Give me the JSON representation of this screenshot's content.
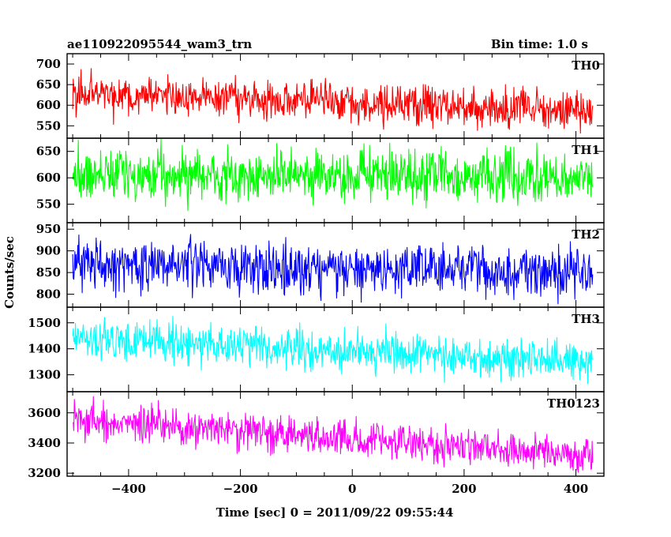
{
  "header": {
    "title": "ae110922095544_wam3_trn",
    "bin_time": "Bin time: 1.0 s"
  },
  "chart_data": {
    "type": "line",
    "ylabel": "Counts/sec",
    "xlabel": "Time [sec] 0 = 2011/09/22 09:55:44",
    "xlim": [
      -510,
      450
    ],
    "x_start": -500,
    "x_end": 430,
    "bin_seconds": 1.0,
    "x_ticks": [
      -400,
      -200,
      0,
      200,
      400
    ],
    "x_tick_labels": [
      "−400",
      "−200",
      "0",
      "200",
      "400"
    ],
    "panels": [
      {
        "name": "TH0",
        "color": "#ff0000",
        "ylim": [
          520,
          725
        ],
        "y_ticks": [
          550,
          600,
          650,
          700
        ],
        "start_level": 630,
        "end_level": 585,
        "noise": 25
      },
      {
        "name": "TH1",
        "color": "#00ff00",
        "ylim": [
          515,
          675
        ],
        "y_ticks": [
          550,
          600,
          650
        ],
        "start_level": 607,
        "end_level": 598,
        "noise": 24
      },
      {
        "name": "TH2",
        "color": "#0000ff",
        "ylim": [
          770,
          965
        ],
        "y_ticks": [
          800,
          850,
          900,
          950
        ],
        "start_level": 870,
        "end_level": 850,
        "noise": 29
      },
      {
        "name": "TH3",
        "color": "#00ffff",
        "ylim": [
          1235,
          1560
        ],
        "y_ticks": [
          1300,
          1400,
          1500
        ],
        "start_level": 1440,
        "end_level": 1350,
        "noise": 38
      },
      {
        "name": "TH0123",
        "color": "#ff00ff",
        "ylim": [
          3180,
          3740
        ],
        "y_ticks": [
          3200,
          3400,
          3600
        ],
        "start_level": 3550,
        "end_level": 3320,
        "noise": 60
      }
    ]
  }
}
